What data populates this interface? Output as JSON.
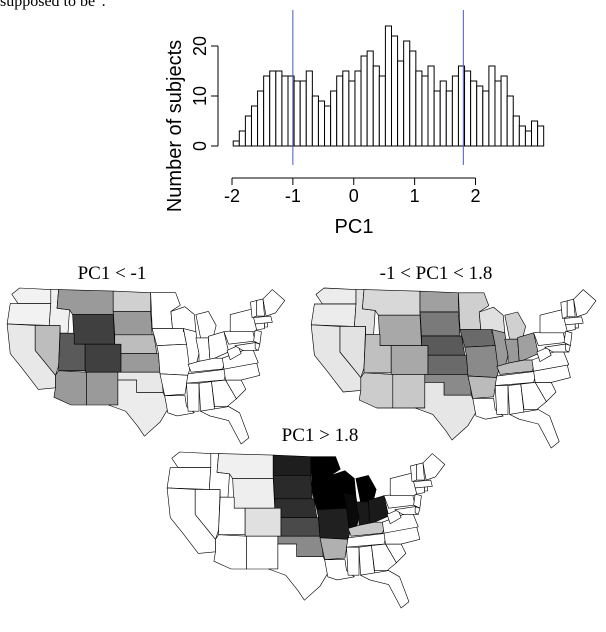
{
  "page": {
    "top_text": "supposed to be\"."
  },
  "chart_data": [
    {
      "type": "bar",
      "title": "",
      "xlabel": "PC1",
      "ylabel": "Number of subjects",
      "xlim": [
        -2,
        2.1
      ],
      "ylim": [
        0,
        25
      ],
      "x_ticks": [
        "-2",
        "-1",
        "0",
        "1",
        "2"
      ],
      "y_ticks": [
        "0",
        "10",
        "20"
      ],
      "bin_width": 0.1,
      "bin_start": -1.98,
      "values": [
        1,
        3,
        6,
        8,
        11,
        14,
        15,
        15,
        14,
        14,
        13,
        13,
        15,
        10,
        9,
        8,
        11,
        14,
        15,
        13,
        15,
        18,
        19,
        16,
        14,
        24,
        22,
        17,
        21,
        19,
        15,
        14,
        16,
        11,
        13,
        11,
        14,
        16,
        15,
        13,
        12,
        11,
        16,
        13,
        14,
        10,
        6,
        4,
        3,
        5,
        4
      ],
      "reference_lines": [
        -1,
        1.8
      ],
      "reference_line_color": "#4a56c8"
    },
    {
      "type": "heatmap",
      "title": "PC1 < -1",
      "regions": [
        {
          "name": "WA",
          "shade": "#f2f2f2"
        },
        {
          "name": "OR",
          "shade": "#f2f2f2"
        },
        {
          "name": "CA",
          "shade": "#e8e8e8"
        },
        {
          "name": "ID",
          "shade": "#f0f0f0"
        },
        {
          "name": "NV",
          "shade": "#bdbdbd"
        },
        {
          "name": "MT",
          "shade": "#9a9a9a"
        },
        {
          "name": "WY",
          "shade": "#404040"
        },
        {
          "name": "UT",
          "shade": "#5a5a5a"
        },
        {
          "name": "CO",
          "shade": "#404040"
        },
        {
          "name": "AZ",
          "shade": "#9a9a9a"
        },
        {
          "name": "NM",
          "shade": "#9a9a9a"
        },
        {
          "name": "ND",
          "shade": "#d0d0d0"
        },
        {
          "name": "SD",
          "shade": "#9a9a9a"
        },
        {
          "name": "NE",
          "shade": "#bdbdbd"
        },
        {
          "name": "KS",
          "shade": "#9a9a9a"
        },
        {
          "name": "OK",
          "shade": "#e8e8e8"
        },
        {
          "name": "TX",
          "shade": "#ececec"
        }
      ]
    },
    {
      "type": "heatmap",
      "title": "-1 < PC1 < 1.8",
      "regions": [
        {
          "name": "WA",
          "shade": "#ececec"
        },
        {
          "name": "OR",
          "shade": "#ececec"
        },
        {
          "name": "CA",
          "shade": "#e6e6e6"
        },
        {
          "name": "ID",
          "shade": "#e0e0e0"
        },
        {
          "name": "NV",
          "shade": "#e2e2e2"
        },
        {
          "name": "MT",
          "shade": "#d8d8d8"
        },
        {
          "name": "WY",
          "shade": "#a8a8a8"
        },
        {
          "name": "UT",
          "shade": "#c0c0c0"
        },
        {
          "name": "CO",
          "shade": "#a8a8a8"
        },
        {
          "name": "AZ",
          "shade": "#cccccc"
        },
        {
          "name": "NM",
          "shade": "#c8c8c8"
        },
        {
          "name": "ND",
          "shade": "#a0a0a0"
        },
        {
          "name": "SD",
          "shade": "#7a7a7a"
        },
        {
          "name": "NE",
          "shade": "#5a5a5a"
        },
        {
          "name": "KS",
          "shade": "#6a6a6a"
        },
        {
          "name": "OK",
          "shade": "#8a8a8a"
        },
        {
          "name": "TX",
          "shade": "#e6e6e6"
        },
        {
          "name": "MN",
          "shade": "#cfcfcf"
        },
        {
          "name": "IA",
          "shade": "#6a6a6a"
        },
        {
          "name": "MO",
          "shade": "#8a8a8a"
        },
        {
          "name": "WI",
          "shade": "#e0e0e0"
        },
        {
          "name": "IL",
          "shade": "#9a9a9a"
        },
        {
          "name": "AR",
          "shade": "#bbbbbb"
        },
        {
          "name": "MI",
          "shade": "#d0d0d0"
        },
        {
          "name": "IN",
          "shade": "#9a9a9a"
        },
        {
          "name": "OH",
          "shade": "#a0a0a0"
        },
        {
          "name": "KY",
          "shade": "#bdbdbd"
        }
      ]
    },
    {
      "type": "heatmap",
      "title": "PC1 > 1.8",
      "regions": [
        {
          "name": "ND",
          "shade": "#1e1e1e"
        },
        {
          "name": "SD",
          "shade": "#2a2a2a"
        },
        {
          "name": "NE",
          "shade": "#2f2f2f"
        },
        {
          "name": "KS",
          "shade": "#4a4a4a"
        },
        {
          "name": "OK",
          "shade": "#8a8a8a"
        },
        {
          "name": "MT",
          "shade": "#f0f0f0"
        },
        {
          "name": "WY",
          "shade": "#eeeeee"
        },
        {
          "name": "CO",
          "shade": "#e0e0e0"
        },
        {
          "name": "MN",
          "shade": "#000000"
        },
        {
          "name": "IA",
          "shade": "#000000"
        },
        {
          "name": "WI",
          "shade": "#000000"
        },
        {
          "name": "IL",
          "shade": "#0a0a0a"
        },
        {
          "name": "MO",
          "shade": "#202020"
        },
        {
          "name": "AR",
          "shade": "#b0b0b0"
        },
        {
          "name": "MI",
          "shade": "#000000"
        },
        {
          "name": "IN",
          "shade": "#1a1a1a"
        },
        {
          "name": "OH",
          "shade": "#1a1a1a"
        },
        {
          "name": "KY",
          "shade": "#c8c8c8"
        }
      ]
    }
  ]
}
